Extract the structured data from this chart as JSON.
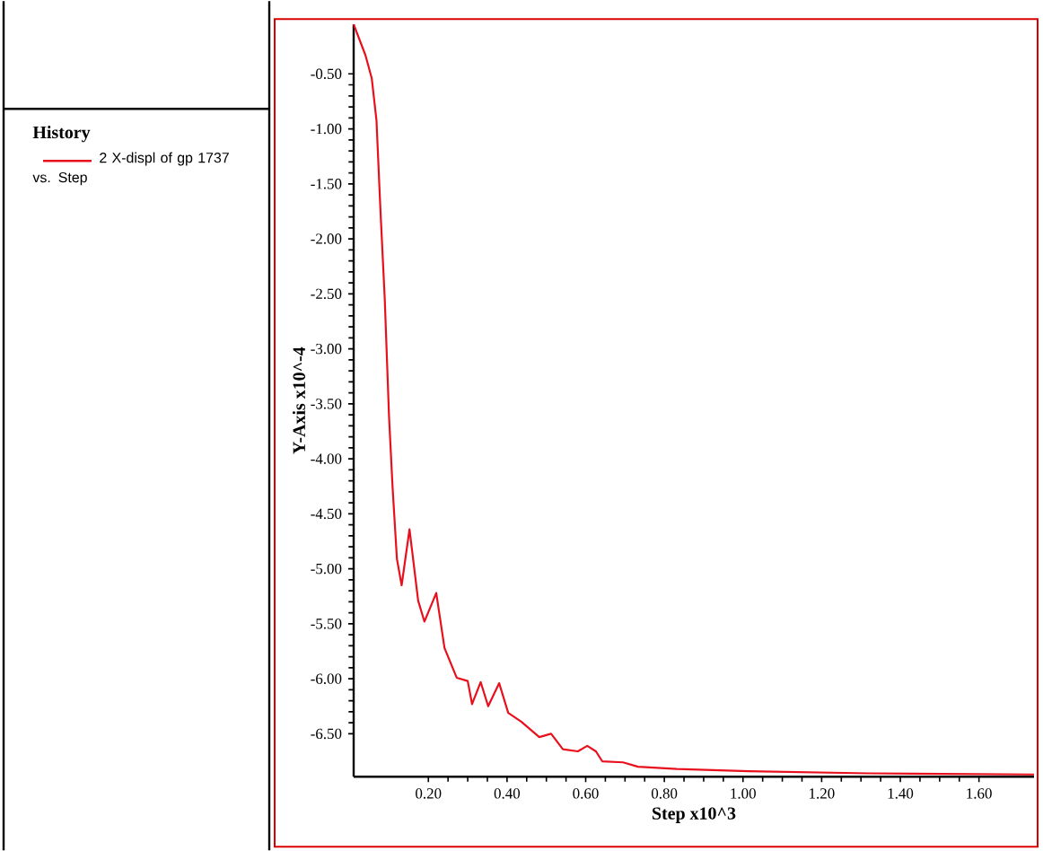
{
  "chart_data": {
    "type": "line",
    "xlabel": "Step x10^3",
    "ylabel": "Y-Axis x10^-4",
    "legend_title": "History",
    "legend": "left",
    "xlim": [
      0.01,
      1.74
    ],
    "ylim": [
      -6.89,
      -0.05
    ],
    "xticks": [
      {
        "value": 0.2,
        "label": "0.20"
      },
      {
        "value": 0.4,
        "label": "0.40"
      },
      {
        "value": 0.6,
        "label": "0.60"
      },
      {
        "value": 0.8,
        "label": "0.80"
      },
      {
        "value": 1.0,
        "label": "1.00"
      },
      {
        "value": 1.2,
        "label": "1.20"
      },
      {
        "value": 1.4,
        "label": "1.40"
      },
      {
        "value": 1.6,
        "label": "1.60"
      }
    ],
    "yticks": [
      {
        "value": -0.5,
        "label": "-0.50"
      },
      {
        "value": -1.0,
        "label": "-1.00"
      },
      {
        "value": -1.5,
        "label": "-1.50"
      },
      {
        "value": -2.0,
        "label": "-2.00"
      },
      {
        "value": -2.5,
        "label": "-2.50"
      },
      {
        "value": -3.0,
        "label": "-3.00"
      },
      {
        "value": -3.5,
        "label": "-3.50"
      },
      {
        "value": -4.0,
        "label": "-4.00"
      },
      {
        "value": -4.5,
        "label": "-4.50"
      },
      {
        "value": -5.0,
        "label": "-5.00"
      },
      {
        "value": -5.5,
        "label": "-5.50"
      },
      {
        "value": -6.0,
        "label": "-6.00"
      },
      {
        "value": -6.5,
        "label": "-6.50"
      }
    ],
    "series": [
      {
        "name": "2 X-displ of gp 1737 vs. Step",
        "color": "#e8101c",
        "x": [
          0.01,
          0.04,
          0.056,
          0.068,
          0.078,
          0.089,
          0.1,
          0.109,
          0.12,
          0.132,
          0.152,
          0.174,
          0.19,
          0.22,
          0.241,
          0.272,
          0.3,
          0.311,
          0.333,
          0.352,
          0.38,
          0.403,
          0.436,
          0.482,
          0.512,
          0.542,
          0.58,
          0.604,
          0.626,
          0.642,
          0.695,
          0.733,
          0.832,
          1.015,
          1.319,
          1.74
        ],
        "values": [
          -0.05,
          -0.33,
          -0.54,
          -0.92,
          -1.73,
          -2.54,
          -3.62,
          -4.26,
          -4.91,
          -5.15,
          -4.64,
          -5.29,
          -5.48,
          -5.22,
          -5.72,
          -5.99,
          -6.02,
          -6.23,
          -6.03,
          -6.25,
          -6.04,
          -6.31,
          -6.39,
          -6.53,
          -6.5,
          -6.64,
          -6.66,
          -6.61,
          -6.66,
          -6.75,
          -6.76,
          -6.8,
          -6.82,
          -6.84,
          -6.86,
          -6.87
        ]
      }
    ]
  }
}
